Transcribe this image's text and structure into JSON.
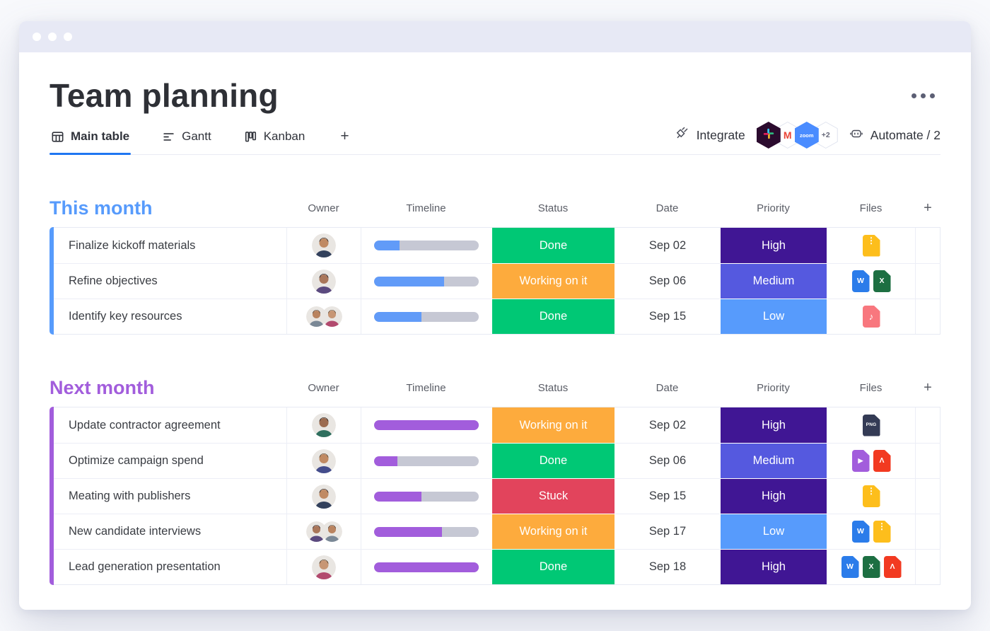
{
  "header": {
    "title": "Team planning"
  },
  "tabs": {
    "items": [
      {
        "label": "Main table",
        "active": true
      },
      {
        "label": "Gantt",
        "active": false
      },
      {
        "label": "Kanban",
        "active": false
      }
    ],
    "add_label": "+"
  },
  "toolbar": {
    "integrate_label": "Integrate",
    "automate_label": "Automate / 2",
    "integrations": [
      {
        "name": "slack"
      },
      {
        "name": "gmail",
        "label": "M"
      },
      {
        "name": "zoom",
        "label": "zoom"
      },
      {
        "name": "more",
        "label": "+2"
      }
    ]
  },
  "columns": [
    "Owner",
    "Timeline",
    "Status",
    "Date",
    "Priority",
    "Files"
  ],
  "add_column_label": "+",
  "status_colors": {
    "done": "#00c875",
    "working": "#fdab3d",
    "stuck": "#e2445c"
  },
  "priority_colors": {
    "high": "#401694",
    "medium": "#5559df",
    "low": "#579bfc"
  },
  "files": {
    "colors": {
      "zip": "#fdbe1c",
      "word": "#2b7cea",
      "excel": "#1d6f42",
      "audio": "#f8777e",
      "png": "#343b55",
      "video": "#a25ddc",
      "pdf": "#f23a21"
    },
    "glyphs": {
      "zip": "⋮",
      "word": "W",
      "excel": "X",
      "audio": "♪",
      "png": "PNG",
      "video": "▶",
      "pdf": "Λ"
    }
  },
  "groups": [
    {
      "title": "This month",
      "color": "#579bfc",
      "timeline_fill": "#619bf8",
      "rows": [
        {
          "name": "Finalize kickoff materials",
          "owners": 1,
          "timeline_pct": 24,
          "status": {
            "label": "Done",
            "color": "#00c875"
          },
          "date": "Sep 02",
          "priority": {
            "label": "High",
            "color": "#401694"
          },
          "files": [
            "zip"
          ]
        },
        {
          "name": "Refine objectives",
          "owners": 1,
          "timeline_pct": 67,
          "status": {
            "label": "Working on it",
            "color": "#fdab3d"
          },
          "date": "Sep 06",
          "priority": {
            "label": "Medium",
            "color": "#5559df"
          },
          "files": [
            "word",
            "excel"
          ]
        },
        {
          "name": "Identify key resources",
          "owners": 2,
          "timeline_pct": 45,
          "status": {
            "label": "Done",
            "color": "#00c875"
          },
          "date": "Sep 15",
          "priority": {
            "label": "Low",
            "color": "#579bfc"
          },
          "files": [
            "audio"
          ]
        }
      ]
    },
    {
      "title": "Next month",
      "color": "#a25ddc",
      "timeline_fill": "#a25ddc",
      "rows": [
        {
          "name": "Update contractor agreement",
          "owners": 1,
          "timeline_pct": 100,
          "status": {
            "label": "Working on it",
            "color": "#fdab3d"
          },
          "date": "Sep 02",
          "priority": {
            "label": "High",
            "color": "#401694"
          },
          "files": [
            "png"
          ]
        },
        {
          "name": "Optimize campaign spend",
          "owners": 1,
          "timeline_pct": 22,
          "status": {
            "label": "Done",
            "color": "#00c875"
          },
          "date": "Sep 06",
          "priority": {
            "label": "Medium",
            "color": "#5559df"
          },
          "files": [
            "video",
            "pdf"
          ]
        },
        {
          "name": "Meating with publishers",
          "owners": 1,
          "timeline_pct": 45,
          "status": {
            "label": "Stuck",
            "color": "#e2445c"
          },
          "date": "Sep 15",
          "priority": {
            "label": "High",
            "color": "#401694"
          },
          "files": [
            "zip"
          ]
        },
        {
          "name": "New candidate interviews",
          "owners": 2,
          "timeline_pct": 65,
          "status": {
            "label": "Working on it",
            "color": "#fdab3d"
          },
          "date": "Sep 17",
          "priority": {
            "label": "Low",
            "color": "#579bfc"
          },
          "files": [
            "word",
            "zip"
          ]
        },
        {
          "name": "Lead generation presentation",
          "owners": 1,
          "timeline_pct": 100,
          "status": {
            "label": "Done",
            "color": "#00c875"
          },
          "date": "Sep 18",
          "priority": {
            "label": "High",
            "color": "#401694"
          },
          "files": [
            "word",
            "excel",
            "pdf"
          ]
        }
      ]
    }
  ]
}
